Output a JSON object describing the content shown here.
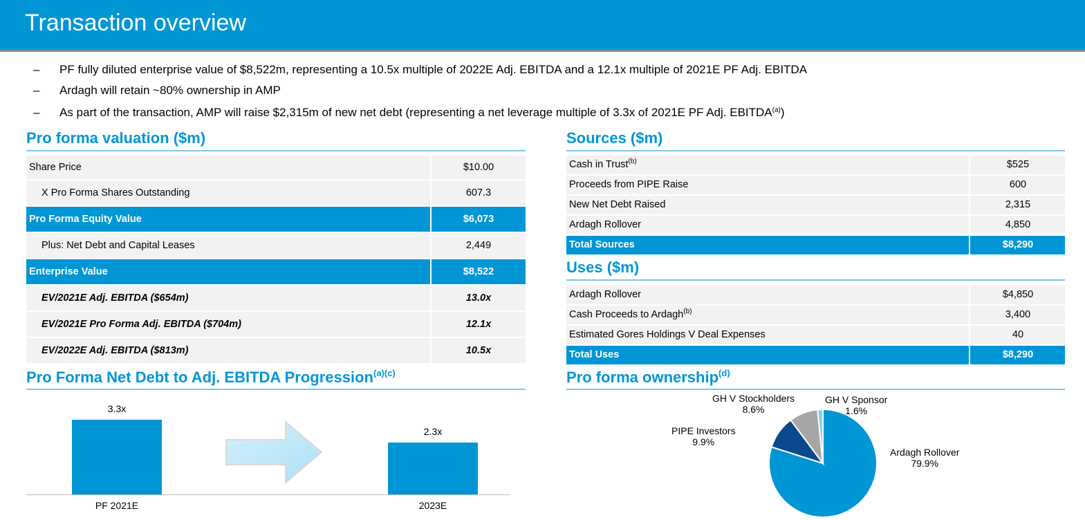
{
  "header": {
    "title": "Transaction overview"
  },
  "bullets": [
    {
      "dash": "–",
      "text": "PF fully diluted enterprise value of $8,522m, representing a 10.5x multiple of 2022E Adj. EBITDA and a 12.1x multiple of 2021E PF Adj. EBITDA",
      "sup": "",
      "after": ""
    },
    {
      "dash": "–",
      "text": "Ardagh will retain ~80% ownership in AMP",
      "sup": "",
      "after": ""
    },
    {
      "dash": "–",
      "text": "As part of the transaction, AMP will raise $2,315m of new net debt (representing a net leverage multiple of 3.3x of 2021E PF Adj. EBITDA",
      "sup": "(a)",
      "after": ")"
    }
  ],
  "valuation": {
    "title": "Pro forma valuation ($m)",
    "rows": [
      {
        "label": "Share Price",
        "value": "$10.00"
      },
      {
        "label": "X Pro Forma Shares Outstanding",
        "value": "607.3"
      },
      {
        "label": "Pro Forma Equity Value",
        "value": "$6,073"
      },
      {
        "label": "Plus: Net Debt and Capital Leases",
        "value": "2,449"
      },
      {
        "label": "Enterprise Value",
        "value": "$8,522"
      },
      {
        "label": "EV/2021E Adj. EBITDA ($654m)",
        "value": "13.0x"
      },
      {
        "label": "EV/2021E Pro Forma Adj. EBITDA ($704m)",
        "value": "12.1x"
      },
      {
        "label": "EV/2022E Adj. EBITDA ($813m)",
        "value": "10.5x"
      }
    ]
  },
  "sources": {
    "title": "Sources ($m)",
    "rows": [
      {
        "label": "Cash in Trust",
        "sup": "(b)",
        "value": "$525"
      },
      {
        "label": "Proceeds from PIPE Raise",
        "sup": "",
        "value": "600"
      },
      {
        "label": "New Net Debt Raised",
        "sup": "",
        "value": "2,315"
      },
      {
        "label": "Ardagh Rollover",
        "sup": "",
        "value": "4,850"
      },
      {
        "label": "Total Sources",
        "sup": "",
        "value": "$8,290"
      }
    ]
  },
  "uses": {
    "title": "Uses ($m)",
    "rows": [
      {
        "label": "Ardagh Rollover",
        "sup": "",
        "value": "$4,850"
      },
      {
        "label": "Cash Proceeds to Ardagh",
        "sup": "(b)",
        "value": "3,400"
      },
      {
        "label": "Estimated Gores Holdings V Deal Expenses",
        "sup": "",
        "value": "40"
      },
      {
        "label": "Total Uses",
        "sup": "",
        "value": "$8,290"
      }
    ]
  },
  "leverage": {
    "title": "Pro Forma Net Debt to Adj. EBITDA Progression",
    "title_sup": "(a)(c)"
  },
  "ownership": {
    "title": "Pro forma ownership",
    "title_sup": "(d)"
  },
  "chart_data": [
    {
      "type": "bar",
      "categories": [
        "PF 2021E",
        "2023E"
      ],
      "values": [
        3.3,
        2.3
      ],
      "value_labels": [
        "3.3x",
        "2.3x"
      ],
      "ylim": [
        0,
        3.3
      ],
      "color": "#0096d6",
      "arrow_color": "#c9ecfb"
    },
    {
      "type": "pie",
      "slices": [
        {
          "name": "Ardagh Rollover",
          "value": 79.9,
          "label": "79.9%",
          "color": "#0096d6"
        },
        {
          "name": "PIPE Investors",
          "value": 9.9,
          "label": "9.9%",
          "color": "#0a4a8c"
        },
        {
          "name": "GH V Stockholders",
          "value": 8.6,
          "label": "8.6%",
          "color": "#a6a6a6"
        },
        {
          "name": "GH V Sponsor",
          "value": 1.6,
          "label": "1.6%",
          "color": "#7fd0f0"
        }
      ]
    }
  ]
}
